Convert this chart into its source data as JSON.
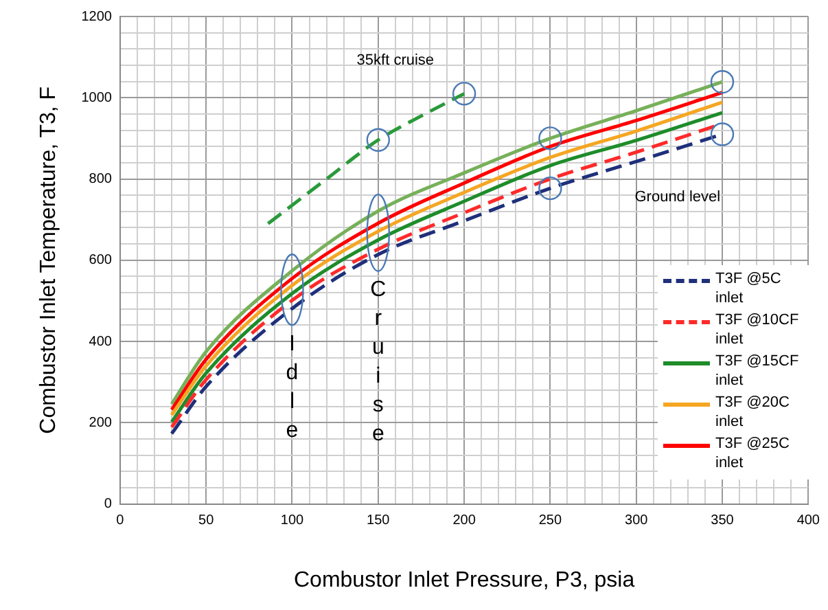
{
  "chart_data": {
    "type": "line",
    "xlabel": "Combustor Inlet Pressure, P3, psia",
    "ylabel": "Combustor Inlet Temperature, T3, F",
    "x": [
      30,
      50,
      100,
      150,
      200,
      250,
      300,
      350
    ],
    "series": [
      {
        "name": "T3F @5C inlet",
        "color": "#1f2f7a",
        "line_style": "dashed",
        "values": [
          173,
          289,
          481,
          614,
          697,
          777,
          843,
          910
        ]
      },
      {
        "name": "T3F @10CF inlet",
        "color": "#ff2a2a",
        "line_style": "dashed",
        "values": [
          189,
          306,
          501,
          627,
          717,
          800,
          866,
          936
        ]
      },
      {
        "name": "T3F @15CF inlet",
        "color": "#1e8c2a",
        "line_style": "solid",
        "values": [
          202,
          322,
          518,
          650,
          745,
          833,
          895,
          963
        ]
      },
      {
        "name": "T3F @20C inlet",
        "color": "#f5a623",
        "line_style": "solid",
        "values": [
          219,
          340,
          538,
          671,
          767,
          853,
          918,
          989
        ]
      },
      {
        "name": "T3F @25C inlet",
        "color": "#ff0000",
        "line_style": "solid",
        "values": [
          232,
          356,
          555,
          691,
          790,
          880,
          944,
          1013
        ]
      },
      {
        "color": "#77b05a",
        "line_style": "solid",
        "values": [
          246,
          375,
          574,
          721,
          815,
          900,
          968,
          1039
        ]
      },
      {
        "color": "#2a9a3a",
        "line_style": "dashed",
        "x": [
          86,
          120,
          150,
          175,
          200
        ],
        "values": [
          690,
          800,
          896,
          955,
          1010
        ]
      }
    ],
    "xlim": [
      0,
      400
    ],
    "xticks": [
      0,
      {
        "value": 10,
        "label": null
      },
      {
        "value": 20,
        "label": null
      },
      {
        "value": 30,
        "label": null
      },
      {
        "value": 40,
        "label": null
      },
      50,
      {
        "value": 60,
        "label": null
      },
      {
        "value": 70,
        "label": null
      },
      {
        "value": 80,
        "label": null
      },
      {
        "value": 90,
        "label": null
      },
      100,
      {
        "value": 110,
        "label": null
      },
      {
        "value": 120,
        "label": null
      },
      {
        "value": 130,
        "label": null
      },
      {
        "value": 140,
        "label": null
      },
      150,
      {
        "value": 160,
        "label": null
      },
      {
        "value": 170,
        "label": null
      },
      {
        "value": 180,
        "label": null
      },
      {
        "value": 190,
        "label": null
      },
      200,
      {
        "value": 210,
        "label": null
      },
      {
        "value": 220,
        "label": null
      },
      {
        "value": 230,
        "label": null
      },
      {
        "value": 240,
        "label": null
      },
      250,
      {
        "value": 260,
        "label": null
      },
      {
        "value": 270,
        "label": null
      },
      {
        "value": 280,
        "label": null
      },
      {
        "value": 290,
        "label": null
      },
      300,
      {
        "value": 310,
        "label": null
      },
      {
        "value": 320,
        "label": null
      },
      {
        "value": 330,
        "label": null
      },
      {
        "value": 340,
        "label": null
      },
      350,
      {
        "value": 360,
        "label": null
      },
      {
        "value": 370,
        "label": null
      },
      {
        "value": 380,
        "label": null
      },
      {
        "value": 390,
        "label": null
      },
      400
    ],
    "ylim": [
      0,
      1200
    ],
    "yticks": [
      0,
      {
        "value": 40,
        "label": null
      },
      {
        "value": 80,
        "label": null
      },
      {
        "value": 120,
        "label": null
      },
      {
        "value": 160,
        "label": null
      },
      200,
      {
        "value": 240,
        "label": null
      },
      {
        "value": 280,
        "label": null
      },
      {
        "value": 320,
        "label": null
      },
      {
        "value": 360,
        "label": null
      },
      400,
      {
        "value": 440,
        "label": null
      },
      {
        "value": 480,
        "label": null
      },
      {
        "value": 520,
        "label": null
      },
      {
        "value": 560,
        "label": null
      },
      600,
      {
        "value": 640,
        "label": null
      },
      {
        "value": 680,
        "label": null
      },
      {
        "value": 720,
        "label": null
      },
      {
        "value": 760,
        "label": null
      },
      800,
      {
        "value": 840,
        "label": null
      },
      {
        "value": 880,
        "label": null
      },
      {
        "value": 920,
        "label": null
      },
      {
        "value": 960,
        "label": null
      },
      1000,
      {
        "value": 1040,
        "label": null
      },
      {
        "value": 1080,
        "label": null
      },
      {
        "value": 1120,
        "label": null
      },
      {
        "value": 1160,
        "label": null
      },
      1200
    ],
    "grid": true,
    "legend": "bottom right",
    "marker": "none",
    "annotations": [
      "35kft cruise",
      "Ground level",
      "Idle",
      "Cruise"
    ]
  }
}
